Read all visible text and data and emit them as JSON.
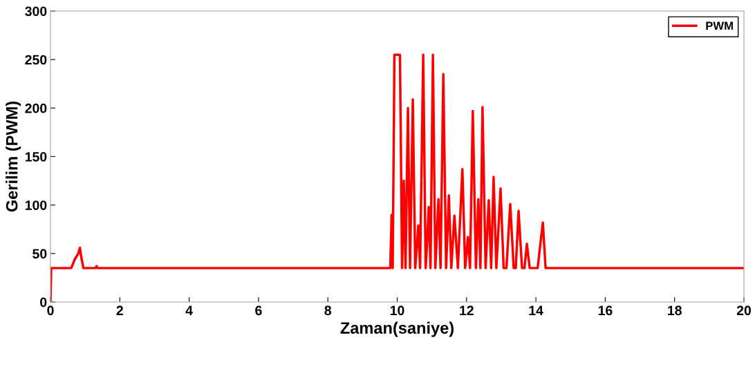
{
  "chart_data": {
    "type": "line",
    "xlabel": "Zaman(saniye)",
    "ylabel": "Gerilim (PWM)",
    "xlim": [
      0,
      20
    ],
    "ylim": [
      0,
      300
    ],
    "xticks": [
      0,
      2,
      4,
      6,
      8,
      10,
      12,
      14,
      16,
      18,
      20
    ],
    "yticks": [
      0,
      50,
      100,
      150,
      200,
      250,
      300
    ],
    "grid": false,
    "legend": "top right",
    "line_style": "solid",
    "marker": "none",
    "series": [
      {
        "name": "PWM",
        "color": "#ff0000",
        "x": [
          0,
          0.02,
          0.6,
          0.7,
          0.8,
          0.85,
          0.88,
          0.95,
          1.3,
          1.33,
          1.36,
          9.8,
          9.84,
          9.87,
          9.92,
          10.08,
          10.14,
          10.19,
          10.24,
          10.31,
          10.37,
          10.45,
          10.52,
          10.61,
          10.66,
          10.75,
          10.82,
          10.86,
          10.91,
          10.96,
          11.03,
          11.1,
          11.19,
          11.25,
          11.33,
          11.41,
          11.49,
          11.56,
          11.65,
          11.75,
          11.88,
          11.96,
          12.04,
          12.1,
          12.18,
          12.27,
          12.34,
          12.4,
          12.46,
          12.55,
          12.64,
          12.71,
          12.78,
          12.86,
          12.98,
          13.07,
          13.15,
          13.26,
          13.36,
          13.42,
          13.5,
          13.6,
          13.67,
          13.74,
          13.82,
          14.05,
          14.2,
          14.28,
          20
        ],
        "values": [
          0,
          35,
          35,
          44,
          50,
          56,
          48,
          35,
          35,
          37,
          35,
          35,
          90,
          35,
          255,
          255,
          35,
          125,
          35,
          200,
          35,
          209,
          35,
          79,
          35,
          255,
          35,
          60,
          98,
          35,
          255,
          35,
          106,
          35,
          235,
          35,
          110,
          35,
          89,
          35,
          137,
          35,
          67,
          35,
          197,
          35,
          106,
          35,
          201,
          35,
          105,
          35,
          129,
          35,
          117,
          35,
          35,
          101,
          35,
          35,
          94,
          35,
          35,
          60,
          35,
          35,
          82,
          35,
          35
        ]
      }
    ]
  }
}
